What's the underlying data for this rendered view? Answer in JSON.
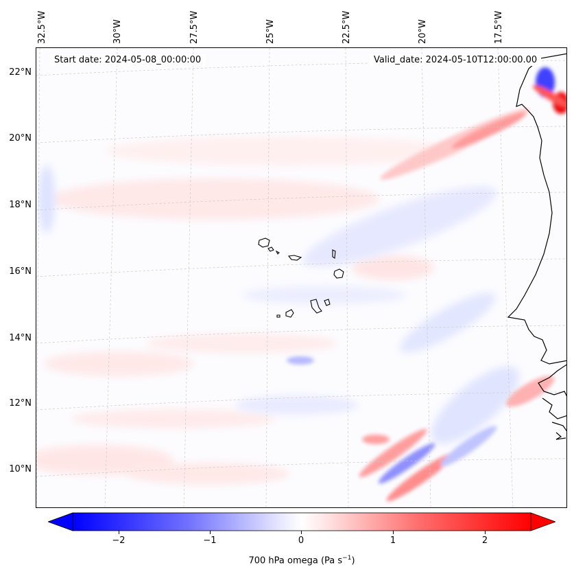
{
  "map": {
    "start_date": "Start date: 2024-05-08_00:00:00",
    "valid_date": "Valid_date: 2024-05-10T12:00:00.00",
    "lon_labels": [
      "32.5°W",
      "30°W",
      "27.5°W",
      "25°W",
      "22.5°W",
      "20°W",
      "17.5°W"
    ],
    "lat_labels": [
      "22°N",
      "20°N",
      "18°N",
      "16°N",
      "14°N",
      "12°N",
      "10°N"
    ],
    "field_name": "700 hPa omega",
    "colors": {
      "negative": "#0000ff",
      "zero": "#ffffff",
      "positive": "#ff0000",
      "coast": "#000000"
    }
  },
  "colorbar": {
    "ticks": [
      "−2",
      "−1",
      "0",
      "1",
      "2"
    ],
    "label": "700 hPa omega (Pa s",
    "label_sup": "−1",
    "label_end": ")",
    "range": [
      -2.5,
      2.5
    ],
    "extend": "both"
  }
}
